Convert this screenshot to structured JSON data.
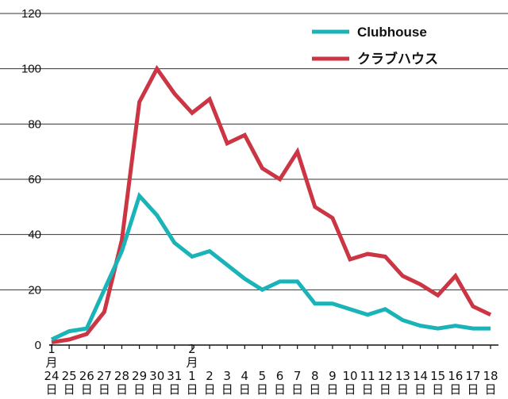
{
  "chart_data": {
    "type": "line",
    "title": "",
    "xlabel": "",
    "ylabel": "",
    "ylim": [
      0,
      120
    ],
    "yticks": [
      0,
      20,
      40,
      60,
      80,
      100,
      120
    ],
    "grid": "horizontal",
    "legend": "top-right",
    "categories": [
      [
        "1",
        "月",
        "24",
        "日"
      ],
      [
        "25",
        "日"
      ],
      [
        "26",
        "日"
      ],
      [
        "27",
        "日"
      ],
      [
        "28",
        "日"
      ],
      [
        "29",
        "日"
      ],
      [
        "30",
        "日"
      ],
      [
        "31",
        "日"
      ],
      [
        "2",
        "月",
        "1",
        "日"
      ],
      [
        "2",
        "日"
      ],
      [
        "3",
        "日"
      ],
      [
        "4",
        "日"
      ],
      [
        "5",
        "日"
      ],
      [
        "6",
        "日"
      ],
      [
        "7",
        "日"
      ],
      [
        "8",
        "日"
      ],
      [
        "9",
        "日"
      ],
      [
        "10",
        "日"
      ],
      [
        "11",
        "日"
      ],
      [
        "12",
        "日"
      ],
      [
        "13",
        "日"
      ],
      [
        "14",
        "日"
      ],
      [
        "15",
        "日"
      ],
      [
        "16",
        "日"
      ],
      [
        "17",
        "日"
      ],
      [
        "18",
        "日"
      ]
    ],
    "series": [
      {
        "name": "Clubhouse",
        "color": "#1ab4b8",
        "values": [
          2,
          5,
          6,
          20,
          34,
          54,
          47,
          37,
          32,
          34,
          29,
          24,
          20,
          23,
          23,
          15,
          15,
          13,
          11,
          13,
          9,
          7,
          6,
          7,
          6,
          6
        ]
      },
      {
        "name": "クラブハウス",
        "color": "#cc3644",
        "values": [
          1,
          2,
          4,
          12,
          38,
          88,
          100,
          91,
          84,
          89,
          73,
          76,
          64,
          60,
          70,
          50,
          46,
          31,
          33,
          32,
          25,
          22,
          18,
          25,
          14,
          11
        ]
      }
    ]
  }
}
